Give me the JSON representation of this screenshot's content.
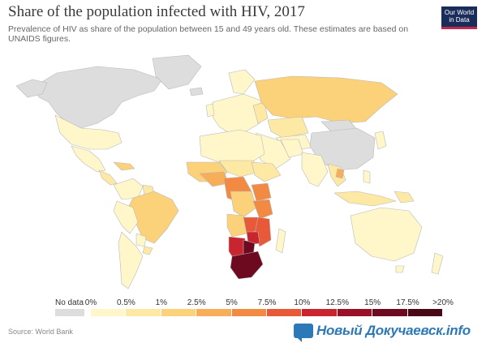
{
  "header": {
    "title": "Share of the population infected with HIV, 2017",
    "subtitle": "Prevalence of HIV as share of the population between 15 and 49 years old. These estimates are based on UNAIDS figures."
  },
  "logo": {
    "line1": "Our World",
    "line2": "in Data"
  },
  "legend": {
    "nodata_label": "No data",
    "nodata_color": "#dddddd",
    "ticks": [
      "0%",
      "0.5%",
      "1%",
      "2.5%",
      "5%",
      "7.5%",
      "10%",
      "12.5%",
      "15%",
      "17.5%",
      ">20%"
    ],
    "bin_colors": [
      "#fff7c9",
      "#fde9a3",
      "#fbd17a",
      "#f8ae58",
      "#f28a43",
      "#e8593a",
      "#c9252e",
      "#9a1026",
      "#6e0a1f",
      "#4a0716"
    ]
  },
  "map_colors": {
    "ocean": "#ffffff",
    "no_data": "#dddddd",
    "very_low": "#fff7c9",
    "low": "#fde9a3",
    "medium": "#fbd17a",
    "elevated": "#f8ae58",
    "high": "#f28a43",
    "very_high": "#e8593a",
    "extreme": "#c9252e",
    "max": "#6e0a1f",
    "border": "#b9b9b9"
  },
  "footer": {
    "source": "Source: World Bank"
  },
  "watermark": {
    "text": "Новый Докучаевск.info"
  }
}
